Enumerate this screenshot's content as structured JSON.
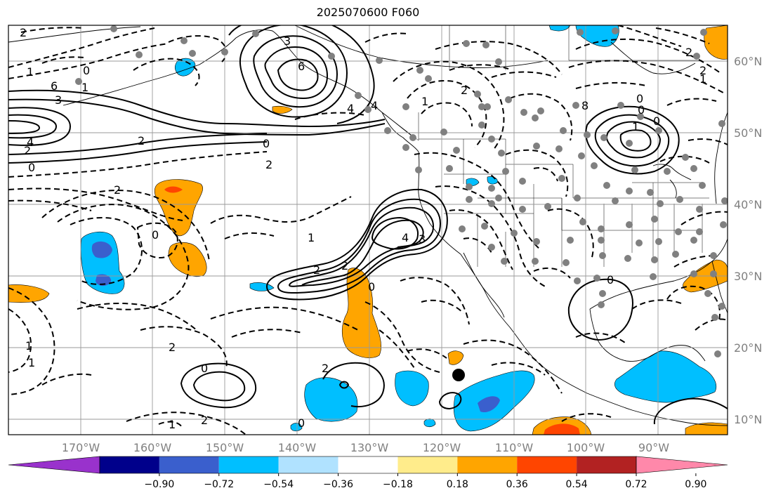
{
  "title": "2025070600 F060",
  "longitude_labels": [
    "170°W",
    "160°W",
    "150°W",
    "140°W",
    "130°W",
    "120°W",
    "110°W",
    "100°W",
    "90°W"
  ],
  "latitude_labels": [
    "60°N",
    "50°N",
    "40°N",
    "30°N",
    "20°N",
    "10°N"
  ],
  "colorbar": {
    "colors": [
      "#9932cc",
      "#00008b",
      "#3a5fcd",
      "#00bfff",
      "#b0e2ff",
      "#ffffff",
      "#ffec8b",
      "#ffa500",
      "#ff4500",
      "#b22222",
      "#ff88aa"
    ],
    "tick_labels": [
      "−0.90",
      "−0.72",
      "−0.54",
      "−0.36",
      "−0.18",
      "0.18",
      "0.36",
      "0.54",
      "0.72",
      "0.90"
    ]
  },
  "contour_labels": [
    "2",
    "1",
    "0",
    "6",
    "3",
    "4",
    "1",
    "0",
    "3",
    "6",
    "4",
    "2",
    "2",
    "0",
    "2",
    "0",
    "2",
    "0",
    "1",
    "2",
    "3",
    "4",
    "2",
    "0",
    "2",
    "1",
    "2",
    "4",
    "1",
    "0",
    "0",
    "8",
    "2",
    "0",
    "1",
    "2",
    "0",
    "2",
    "1",
    "1",
    "2",
    "1",
    "0"
  ],
  "marker": {
    "label": "black dot"
  }
}
